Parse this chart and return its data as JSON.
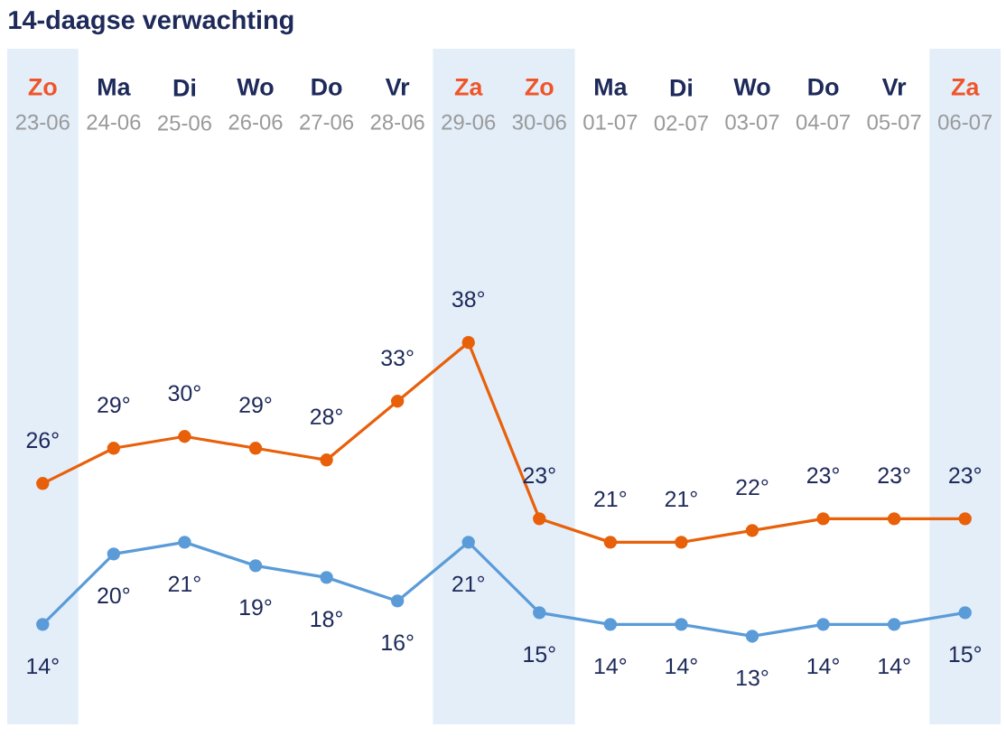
{
  "chart_data": {
    "type": "line",
    "title": "14-daagse verwachting",
    "categories": [
      "**Zo** 23-06",
      "**Ma** 24-06",
      "**Di** 25-06",
      "**Wo** 26-06",
      "**Do** 27-06",
      "**Vr** 28-06",
      "**Za** 29-06",
      "**Zo** 30-06",
      "**Ma** 01-07",
      "**Di** 02-07",
      "**Wo** 03-07",
      "**Do** 04-07",
      "**Vr** 05-07",
      "**Za** 06-07"
    ],
    "series": [
      {
        "color": "#e8600a",
        "values": [
          26,
          29,
          30,
          29,
          28,
          33,
          38,
          23,
          21,
          21,
          22,
          23,
          23,
          23
        ],
        "value_labels": [
          "26°",
          "29°",
          "30°",
          "29°",
          "28°",
          "33°",
          "38°",
          "23°",
          "21°",
          "21°",
          "22°",
          "23°",
          "23°",
          "23°"
        ]
      },
      {
        "color": "#5a9bd8",
        "values": [
          14,
          20,
          21,
          19,
          18,
          16,
          21,
          15,
          14,
          14,
          13,
          14,
          14,
          15
        ],
        "value_labels": [
          "14°",
          "20°",
          "21°",
          "19°",
          "18°",
          "16°",
          "21°",
          "15°",
          "14°",
          "14°",
          "13°",
          "14°",
          "14°",
          "15°"
        ]
      }
    ],
    "marker": "circle",
    "line_style": "solid",
    "grid": false,
    "legend": false,
    "bands": [
      {
        "axis": "x",
        "from": "**Zo** 23-06",
        "to": "**Zo** 23-06",
        "color": "#e3eef9"
      },
      {
        "axis": "x",
        "from": "**Za** 29-06",
        "to": "**Zo** 30-06",
        "color": "#e3eef9"
      },
      {
        "axis": "x",
        "from": "**Za** 06-07",
        "to": "**Za** 06-07",
        "color": "#e3eef9"
      }
    ]
  }
}
